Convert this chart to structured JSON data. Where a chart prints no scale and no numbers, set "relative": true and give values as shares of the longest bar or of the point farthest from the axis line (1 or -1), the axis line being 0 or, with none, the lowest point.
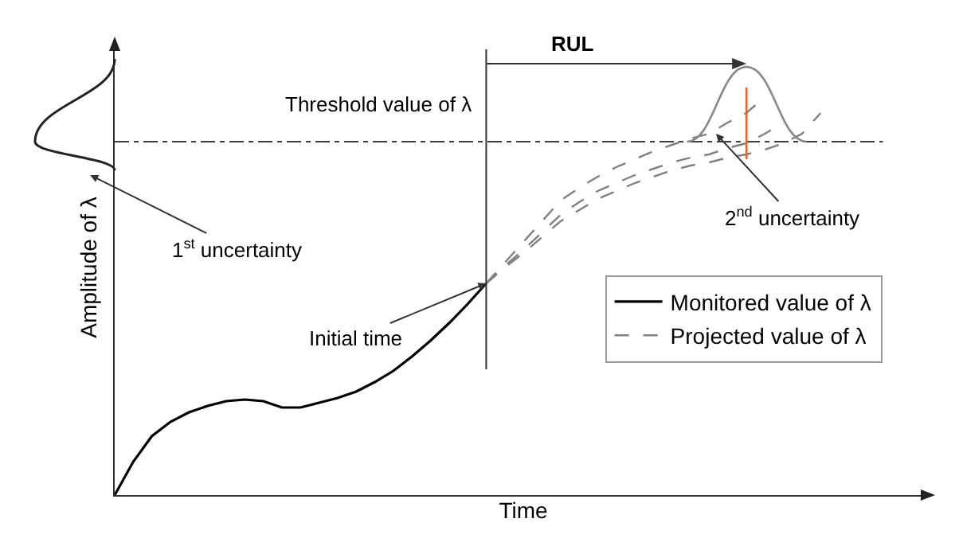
{
  "chart_data": {
    "type": "line",
    "relative": true,
    "xlabel": "Time",
    "ylabel": "Amplitude of λ",
    "categories": [
      null,
      null,
      null,
      null,
      null,
      null,
      null,
      null,
      null,
      null,
      null,
      null,
      null,
      null,
      null,
      null,
      null,
      null,
      null,
      null,
      null,
      null,
      null,
      null,
      null,
      null,
      null,
      null,
      null,
      null,
      null,
      null,
      null,
      null,
      null,
      null,
      null,
      null,
      null
    ],
    "series": [
      {
        "name": "Monitored value of λ",
        "color": "#000000",
        "line_style": "solid",
        "values": [
          0,
          0.084,
          0.148,
          0.184,
          0.208,
          0.224,
          0.236,
          0.24,
          0.236,
          0.22,
          0.22,
          0.232,
          0.244,
          0.26,
          0.284,
          0.312,
          0.348,
          0.388,
          0.432,
          0.48,
          0.532,
          null,
          null,
          null,
          null,
          null,
          null,
          null,
          null,
          null,
          null,
          null,
          null,
          null,
          null,
          null,
          null,
          null,
          null
        ]
      },
      {
        "name": "Projected value of λ",
        "color": "#808080",
        "line_style": "dashed",
        "values": [
          null,
          null,
          null,
          null,
          null,
          null,
          null,
          null,
          null,
          null,
          null,
          null,
          null,
          null,
          null,
          null,
          null,
          null,
          null,
          null,
          0.532,
          0.584,
          0.636,
          0.688,
          0.74,
          0.772,
          0.8,
          0.824,
          0.844,
          0.864,
          0.88,
          0.896,
          0.908,
          0.936,
          0.96,
          1,
          null,
          null,
          null
        ]
      },
      {
        "color": "#808080",
        "line_style": "dashed",
        "values": [
          null,
          null,
          null,
          null,
          null,
          null,
          null,
          null,
          null,
          null,
          null,
          null,
          null,
          null,
          null,
          null,
          null,
          null,
          null,
          null,
          0.532,
          0.576,
          0.616,
          0.66,
          0.704,
          0.736,
          0.764,
          0.784,
          0.804,
          0.82,
          0.836,
          0.848,
          0.856,
          0.872,
          0.884,
          0.908,
          0.936,
          null,
          null
        ]
      },
      {
        "color": "#808080",
        "line_style": "dashed",
        "values": [
          null,
          null,
          null,
          null,
          null,
          null,
          null,
          null,
          null,
          null,
          null,
          null,
          null,
          null,
          null,
          null,
          null,
          null,
          null,
          null,
          0.532,
          0.572,
          0.608,
          0.648,
          0.688,
          0.716,
          0.744,
          0.764,
          0.784,
          0.8,
          0.816,
          0.828,
          0.836,
          0.848,
          0.856,
          0.868,
          0.884,
          0.908,
          0.96
        ]
      }
    ],
    "ref_lines": [
      {
        "axis": "y",
        "value": 0.888,
        "label": "Threshold value of λ",
        "color": "#000000",
        "line_style": "dashed"
      }
    ],
    "annotations": [
      "RUL",
      "Initial time",
      "1$^{st}$ uncertainty",
      "2$^{nd}$ uncertainty"
    ],
    "grid": false,
    "legend": "right",
    "marker": "none"
  }
}
